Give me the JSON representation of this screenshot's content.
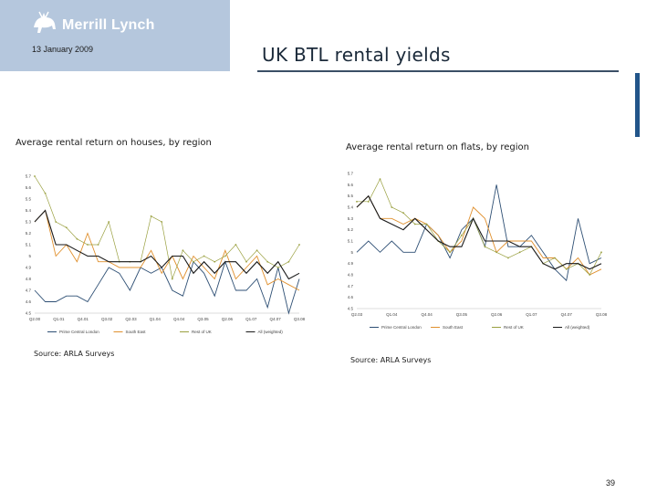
{
  "header": {
    "brand": "Merrill Lynch",
    "date": "13 January 2009",
    "title": "UK BTL rental yields",
    "page_number": "39"
  },
  "colors": {
    "logo_bg": "#b5c7dd",
    "accent_bar": "#22558a",
    "prime_central_london": "#2e4f74",
    "south_east": "#e0902e",
    "rest_of_uk": "#9aa040",
    "all_weighted": "#1a1a1a"
  },
  "chart_data": [
    {
      "type": "line",
      "title": "Average rental return on houses, by region",
      "source": "Source: ARLA Surveys",
      "x_tick_labels": [
        "Q2.00",
        "Q1.01",
        "Q4.01",
        "Q3.02",
        "Q2.03",
        "Q1.04",
        "Q4.04",
        "Q3.05",
        "Q2.06",
        "Q1.07",
        "Q4.07",
        "Q3.08"
      ],
      "y_tick_labels": [
        "5.7",
        "5.6",
        "5.5",
        "5.4",
        "5.3",
        "5.2",
        "5.1",
        "5",
        "4.9",
        "4.8",
        "4.7",
        "4.6",
        "4.5"
      ],
      "ylim": [
        4.5,
        5.7
      ],
      "x_count": 26,
      "grid": false,
      "legend_position": "bottom",
      "series": [
        {
          "name": "Prime Central London",
          "color": "#2e4f74",
          "values": [
            4.7,
            4.6,
            4.6,
            4.65,
            4.65,
            4.6,
            4.75,
            4.9,
            4.85,
            4.7,
            4.9,
            4.85,
            4.9,
            4.7,
            4.65,
            4.95,
            4.85,
            4.65,
            4.95,
            4.7,
            4.7,
            4.8,
            4.55,
            4.9,
            4.5,
            4.8
          ]
        },
        {
          "name": "South East",
          "color": "#e0902e",
          "values": [
            5.3,
            5.4,
            5.0,
            5.1,
            4.95,
            5.2,
            4.95,
            4.95,
            4.9,
            4.9,
            4.9,
            5.05,
            4.85,
            5.0,
            4.8,
            5.0,
            4.9,
            4.8,
            5.05,
            4.8,
            4.9,
            5.0,
            4.75,
            4.8,
            4.75,
            4.7
          ]
        },
        {
          "name": "Rest of UK",
          "color": "#9aa040",
          "values": [
            5.7,
            5.55,
            5.3,
            5.25,
            5.15,
            5.1,
            5.1,
            5.3,
            4.95,
            4.95,
            4.95,
            5.35,
            5.3,
            4.8,
            5.05,
            4.95,
            5.0,
            4.95,
            5.0,
            5.1,
            4.95,
            5.05,
            4.95,
            4.9,
            4.95,
            5.1
          ]
        },
        {
          "name": "All (weighted)",
          "color": "#1a1a1a",
          "values": [
            5.3,
            5.4,
            5.1,
            5.1,
            5.05,
            5.0,
            5.0,
            4.95,
            4.95,
            4.95,
            4.95,
            5.0,
            4.9,
            5.0,
            5.0,
            4.85,
            4.95,
            4.85,
            4.95,
            4.95,
            4.85,
            4.95,
            4.85,
            4.95,
            4.8,
            4.85
          ]
        }
      ]
    },
    {
      "type": "line",
      "title": "Average rental return on flats, by region",
      "source": "Source: ARLA Surveys",
      "x_tick_labels": [
        "Q2.03",
        "Q1.04",
        "Q4.04",
        "Q3.05",
        "Q2.06",
        "Q1.07",
        "Q4.07",
        "Q3.08"
      ],
      "y_tick_labels": [
        "5.7",
        "5.6",
        "5.5",
        "5.4",
        "5.3",
        "5.2",
        "5.1",
        "5",
        "4.9",
        "4.8",
        "4.7",
        "4.6",
        "4.5"
      ],
      "ylim": [
        4.5,
        5.7
      ],
      "x_count": 22,
      "grid": false,
      "legend_position": "bottom",
      "series": [
        {
          "name": "Prime Central London",
          "color": "#2e4f74",
          "values": [
            5.0,
            5.1,
            5.0,
            5.1,
            5.0,
            5.0,
            5.25,
            5.15,
            4.95,
            5.2,
            5.3,
            5.05,
            5.6,
            5.05,
            5.05,
            5.15,
            5.0,
            4.85,
            4.75,
            5.3,
            4.9,
            4.95
          ]
        },
        {
          "name": "South East",
          "color": "#e0902e",
          "values": [
            5.4,
            5.5,
            5.3,
            5.3,
            5.25,
            5.3,
            5.25,
            5.15,
            5.0,
            5.1,
            5.4,
            5.3,
            5.0,
            5.1,
            5.1,
            5.1,
            4.95,
            4.95,
            4.85,
            4.95,
            4.8,
            4.85
          ]
        },
        {
          "name": "Rest of UK",
          "color": "#9aa040",
          "values": [
            5.45,
            5.45,
            5.65,
            5.4,
            5.35,
            5.25,
            5.25,
            5.1,
            5.0,
            5.15,
            5.3,
            5.05,
            5.0,
            4.95,
            5.0,
            5.05,
            4.9,
            4.95,
            4.85,
            4.9,
            4.8,
            5.0
          ]
        },
        {
          "name": "All (weighted)",
          "color": "#1a1a1a",
          "values": [
            5.4,
            5.5,
            5.3,
            5.25,
            5.2,
            5.3,
            5.2,
            5.1,
            5.05,
            5.05,
            5.3,
            5.1,
            5.1,
            5.1,
            5.05,
            5.05,
            4.9,
            4.85,
            4.9,
            4.9,
            4.85,
            4.9
          ]
        }
      ]
    }
  ]
}
